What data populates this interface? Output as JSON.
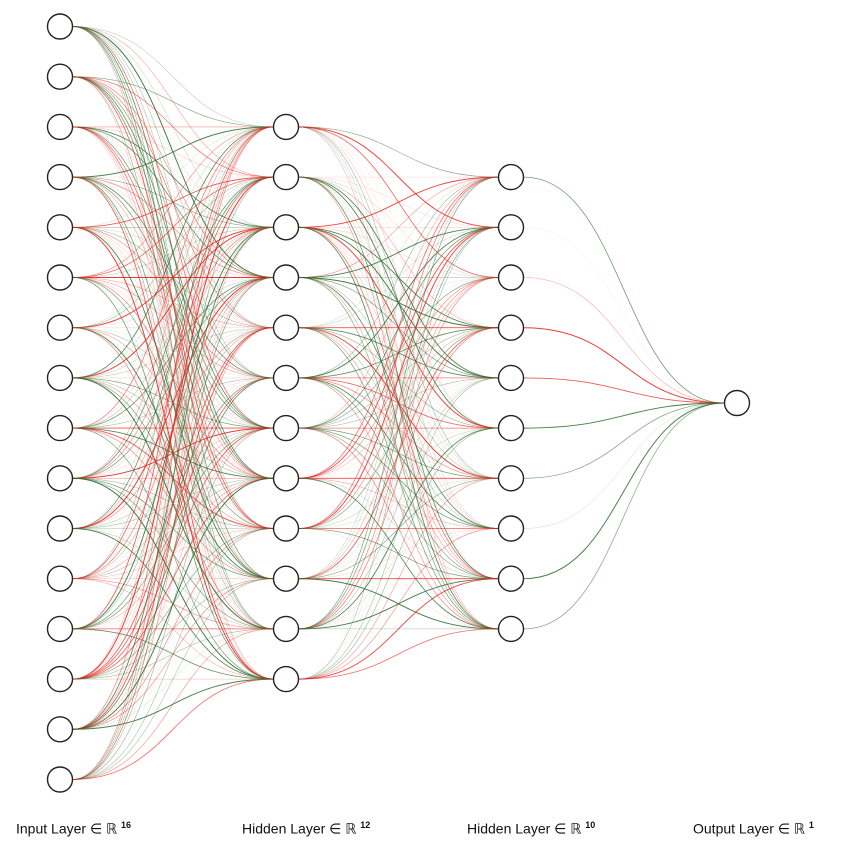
{
  "diagram": {
    "type": "neural-network",
    "layers": [
      {
        "name": "input",
        "size": 16,
        "label": "Input Layer ∈ ℝ",
        "dim": "16"
      },
      {
        "name": "hidden-1",
        "size": 12,
        "label": "Hidden Layer ∈ ℝ",
        "dim": "12"
      },
      {
        "name": "hidden-2",
        "size": 10,
        "label": "Hidden Layer ∈ ℝ",
        "dim": "10"
      },
      {
        "name": "output",
        "size": 1,
        "label": "Output Layer ∈ ℝ",
        "dim": "1"
      }
    ],
    "edge_colors": {
      "positive": "#2e6b2e",
      "negative": "#e8231c"
    },
    "node_color": "#ffffff",
    "node_stroke": "#222222"
  }
}
